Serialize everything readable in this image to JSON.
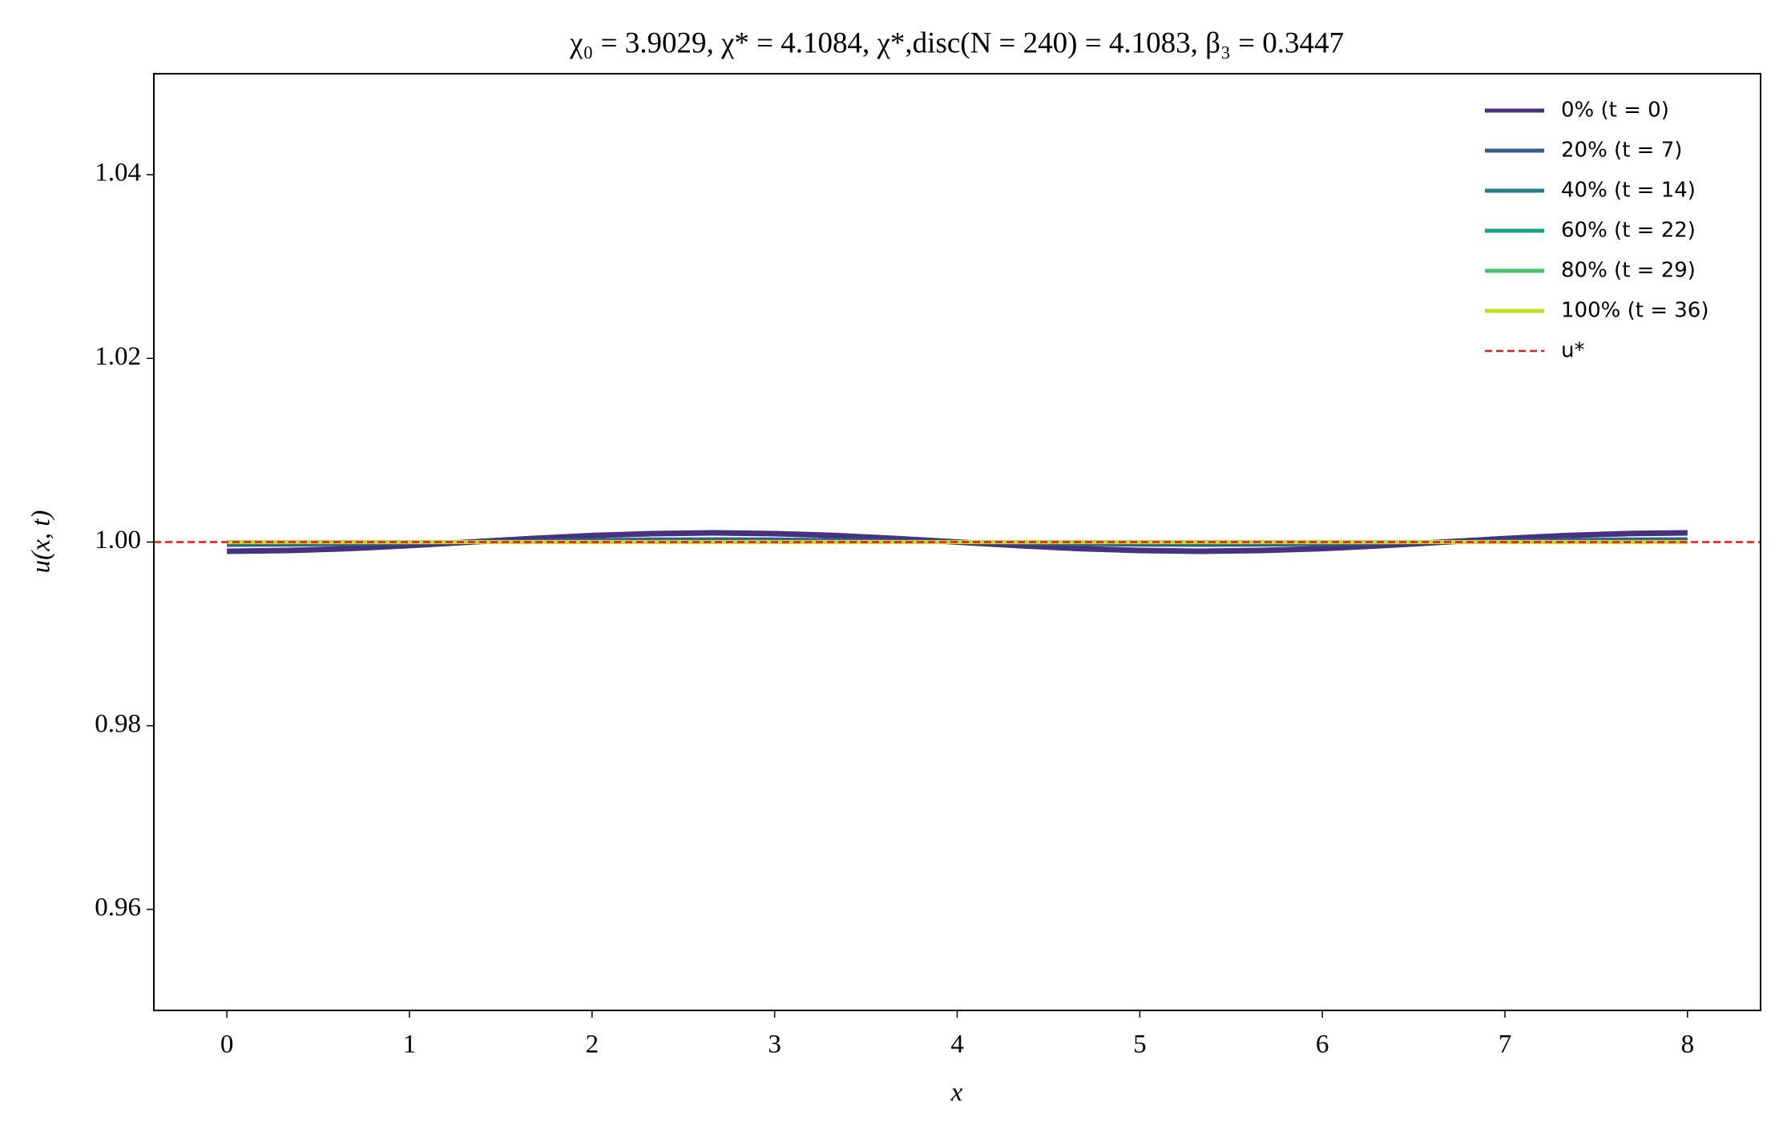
{
  "chart_data": {
    "type": "line",
    "title": "χ₀ = 3.9029,  χ* = 4.1084,  χ*,disc(N = 240) = 4.1083,  β₃ = 0.3447",
    "x_label": "x",
    "y_label": "u(x, t)",
    "x": [
      0,
      0.333,
      0.667,
      1,
      1.333,
      1.667,
      2,
      2.333,
      2.667,
      3,
      3.333,
      3.667,
      4,
      4.333,
      4.667,
      5,
      5.333,
      5.667,
      6,
      6.333,
      6.667,
      7,
      7.333,
      7.667,
      8
    ],
    "series": [
      {
        "name": "0% (t = 0)",
        "color": "#46327e",
        "values": [
          0.999,
          0.99908,
          0.99929,
          0.99962,
          1,
          1.00038,
          1.00071,
          1.00092,
          1.001,
          1.00092,
          1.00071,
          1.00038,
          1,
          0.99962,
          0.99929,
          0.99908,
          0.999,
          0.99908,
          0.99929,
          0.99962,
          1,
          1.00038,
          1.00071,
          1.00092,
          1.001
        ]
      },
      {
        "name": "20% (t = 7)",
        "color": "#365c8d",
        "values": [
          0.9997,
          0.99972,
          0.99979,
          0.99989,
          1,
          1.00011,
          1.00021,
          1.00028,
          1.0003,
          1.00028,
          1.00021,
          1.00011,
          1,
          0.99989,
          0.99979,
          0.99972,
          0.9997,
          0.99972,
          0.99979,
          0.99989,
          1,
          1.00011,
          1.00021,
          1.00028,
          1.0003
        ]
      },
      {
        "name": "40% (t = 14)",
        "color": "#277f8e",
        "values": [
          0.9999,
          0.99991,
          0.99993,
          0.99996,
          1,
          1.00004,
          1.00007,
          1.00009,
          1.0001,
          1.00009,
          1.00007,
          1.00004,
          1,
          0.99996,
          0.99993,
          0.99991,
          0.9999,
          0.99991,
          0.99993,
          0.99996,
          1,
          1.00004,
          1.00007,
          1.00009,
          1.0001
        ]
      },
      {
        "name": "60% (t = 22)",
        "color": "#1fa187",
        "values": [
          1,
          1,
          1,
          1,
          1,
          1,
          1,
          1,
          1,
          1,
          1,
          1,
          1,
          1,
          1,
          1,
          1,
          1,
          1,
          1,
          1,
          1,
          1,
          1,
          1
        ]
      },
      {
        "name": "80% (t = 29)",
        "color": "#4ac16d",
        "values": [
          1,
          1,
          1,
          1,
          1,
          1,
          1,
          1,
          1,
          1,
          1,
          1,
          1,
          1,
          1,
          1,
          1,
          1,
          1,
          1,
          1,
          1,
          1,
          1,
          1
        ]
      },
      {
        "name": "100% (t = 36)",
        "color": "#bddf26",
        "values": [
          1,
          1,
          1,
          1,
          1,
          1,
          1,
          1,
          1,
          1,
          1,
          1,
          1,
          1,
          1,
          1,
          1,
          1,
          1,
          1,
          1,
          1,
          1,
          1,
          1
        ]
      }
    ],
    "reference": {
      "name": "u*",
      "value": 1,
      "color": "#e31a1c"
    },
    "xlim": [
      -0.4,
      8.4
    ],
    "xticks": [
      0,
      1,
      2,
      3,
      4,
      5,
      6,
      7,
      8
    ],
    "ylim": [
      0.949,
      1.051
    ],
    "yticks": [
      0.96,
      0.98,
      {
        "value": 1,
        "label": "1.00"
      },
      1.02,
      1.04
    ],
    "grid": false,
    "legend": "upper right"
  }
}
